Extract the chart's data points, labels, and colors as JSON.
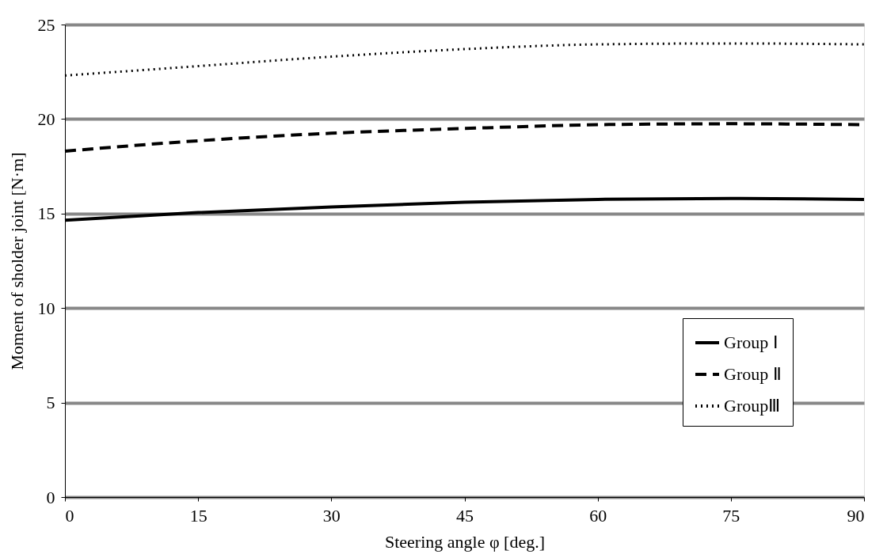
{
  "chart_data": {
    "type": "line",
    "xlabel": "Steering angle φ [deg.]",
    "ylabel": "Moment of sholder joint  [N·m]",
    "x": [
      0,
      15,
      30,
      45,
      60,
      75,
      90
    ],
    "series": [
      {
        "name": "Group Ⅰ",
        "color": "#000000",
        "line_style": "solid",
        "values": [
          14.65,
          15.05,
          15.35,
          15.6,
          15.75,
          15.8,
          15.75
        ]
      },
      {
        "name": "Group Ⅱ",
        "color": "#000000",
        "line_style": "dashed",
        "values": [
          18.3,
          18.85,
          19.25,
          19.5,
          19.7,
          19.75,
          19.7
        ]
      },
      {
        "name": "GroupⅢ",
        "color": "#000000",
        "line_style": "dotted",
        "values": [
          22.3,
          22.8,
          23.3,
          23.7,
          23.95,
          24.0,
          23.95
        ]
      }
    ],
    "xlim": [
      0,
      90
    ],
    "xticks": [
      0,
      15,
      30,
      45,
      60,
      75,
      90
    ],
    "ylim": [
      0,
      25
    ],
    "yticks": [
      0,
      5,
      10,
      15,
      20,
      25
    ],
    "grid": "y",
    "legend": "bottom right",
    "marker": "none"
  }
}
